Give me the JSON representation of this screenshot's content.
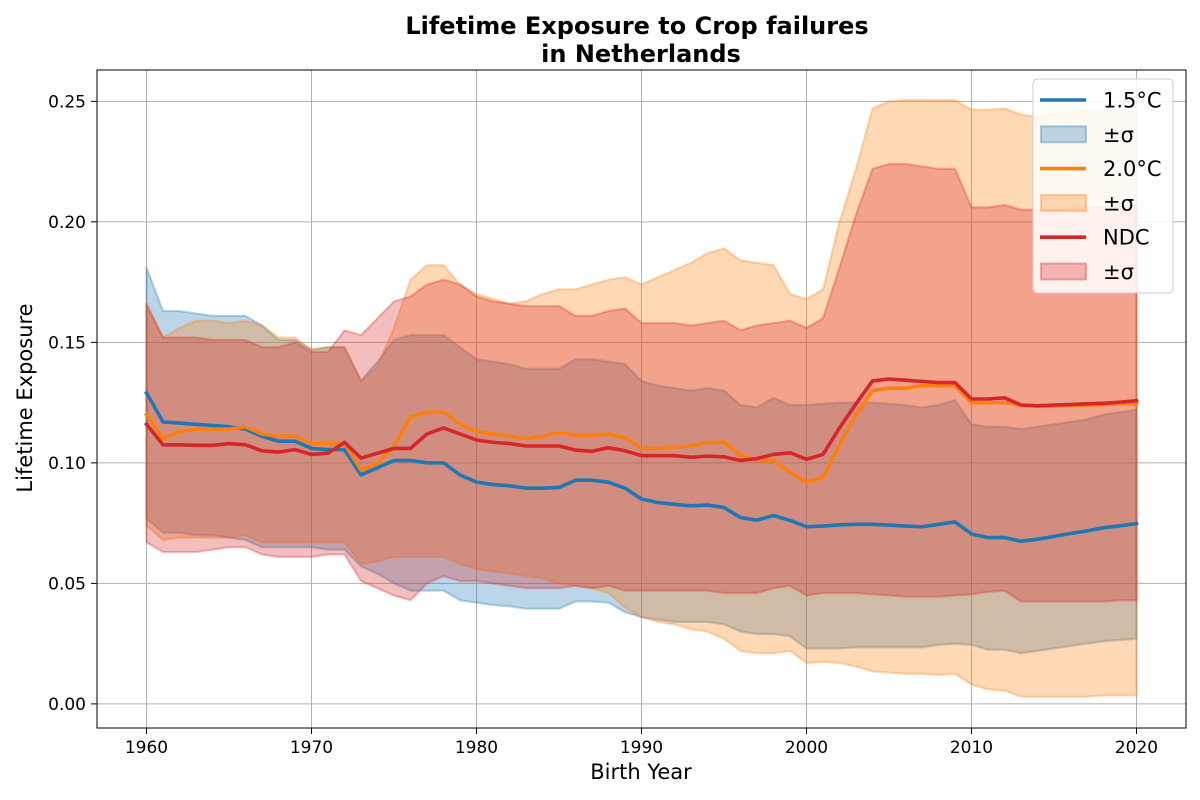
{
  "chart_data": {
    "type": "line",
    "title_line1": "Lifetime Exposure to Crop failures",
    "title_line2": "in Netherlands",
    "xlabel": "Birth Year",
    "ylabel": "Lifetime Exposure",
    "xlim": [
      1957,
      2023
    ],
    "ylim": [
      -0.01,
      0.263
    ],
    "xticks": [
      1960,
      1970,
      1980,
      1990,
      2000,
      2010,
      2020
    ],
    "yticks": [
      0.0,
      0.05,
      0.1,
      0.15,
      0.2,
      0.25
    ],
    "xtick_labels": [
      "1960",
      "1970",
      "1980",
      "1990",
      "2000",
      "2010",
      "2020"
    ],
    "ytick_labels": [
      "0.00",
      "0.05",
      "0.10",
      "0.15",
      "0.20",
      "0.25"
    ],
    "grid": true,
    "legend_position": "top-right",
    "legend_labels": [
      "1.5°C",
      "±σ",
      "2.0°C",
      "±σ",
      "NDC",
      "±σ"
    ],
    "series": [
      {
        "name": "1.5°C",
        "color": "#1f77b4",
        "x": [
          1960,
          1961,
          1962,
          1963,
          1964,
          1965,
          1966,
          1967,
          1968,
          1969,
          1970,
          1971,
          1972,
          1973,
          1974,
          1975,
          1976,
          1977,
          1978,
          1979,
          1980,
          1981,
          1982,
          1983,
          1984,
          1985,
          1986,
          1987,
          1988,
          1989,
          1990,
          1991,
          1992,
          1993,
          1994,
          1995,
          1996,
          1997,
          1998,
          1999,
          2000,
          2001,
          2002,
          2003,
          2004,
          2005,
          2006,
          2007,
          2008,
          2009,
          2010,
          2011,
          2012,
          2013,
          2014,
          2015,
          2016,
          2017,
          2018,
          2019,
          2020
        ],
        "values": [
          0.129,
          0.117,
          0.1165,
          0.116,
          0.1155,
          0.115,
          0.114,
          0.111,
          0.109,
          0.109,
          0.106,
          0.1055,
          0.1055,
          0.095,
          0.098,
          0.101,
          0.101,
          0.1,
          0.1,
          0.095,
          0.092,
          0.091,
          0.0905,
          0.0895,
          0.0895,
          0.0898,
          0.0928,
          0.0928,
          0.092,
          0.0895,
          0.085,
          0.0835,
          0.0828,
          0.0822,
          0.0825,
          0.0815,
          0.0773,
          0.0762,
          0.0782,
          0.0761,
          0.0735,
          0.0738,
          0.0743,
          0.0745,
          0.0745,
          0.0742,
          0.0738,
          0.0735,
          0.0745,
          0.0755,
          0.0705,
          0.069,
          0.069,
          0.0675,
          0.0683,
          0.0695,
          0.0707,
          0.0718,
          0.0731,
          0.0739,
          0.0748
        ],
        "upper": [
          0.181,
          0.163,
          0.163,
          0.162,
          0.161,
          0.161,
          0.161,
          0.157,
          0.151,
          0.151,
          0.147,
          0.148,
          0.148,
          0.134,
          0.142,
          0.151,
          0.153,
          0.153,
          0.153,
          0.148,
          0.143,
          0.142,
          0.141,
          0.139,
          0.139,
          0.139,
          0.143,
          0.143,
          0.142,
          0.141,
          0.134,
          0.132,
          0.131,
          0.13,
          0.131,
          0.13,
          0.124,
          0.123,
          0.127,
          0.124,
          0.124,
          0.1245,
          0.125,
          0.125,
          0.125,
          0.1245,
          0.124,
          0.123,
          0.124,
          0.126,
          0.116,
          0.115,
          0.115,
          0.114,
          0.115,
          0.116,
          0.117,
          0.118,
          0.12,
          0.121,
          0.122
        ],
        "lower": [
          0.077,
          0.071,
          0.071,
          0.07,
          0.07,
          0.069,
          0.068,
          0.065,
          0.065,
          0.065,
          0.065,
          0.064,
          0.064,
          0.057,
          0.054,
          0.05,
          0.047,
          0.047,
          0.047,
          0.043,
          0.042,
          0.041,
          0.0405,
          0.0395,
          0.0395,
          0.0395,
          0.0425,
          0.0425,
          0.042,
          0.038,
          0.036,
          0.035,
          0.034,
          0.034,
          0.034,
          0.033,
          0.03,
          0.029,
          0.029,
          0.028,
          0.023,
          0.023,
          0.023,
          0.0235,
          0.0235,
          0.0235,
          0.0235,
          0.0235,
          0.0245,
          0.025,
          0.0245,
          0.0225,
          0.0225,
          0.021,
          0.022,
          0.023,
          0.024,
          0.025,
          0.026,
          0.0265,
          0.027
        ]
      },
      {
        "name": "2.0°C",
        "color": "#ff7f0e",
        "x": [
          1960,
          1961,
          1962,
          1963,
          1964,
          1965,
          1966,
          1967,
          1968,
          1969,
          1970,
          1971,
          1972,
          1973,
          1974,
          1975,
          1976,
          1977,
          1978,
          1979,
          1980,
          1981,
          1982,
          1983,
          1984,
          1985,
          1986,
          1987,
          1988,
          1989,
          1990,
          1991,
          1992,
          1993,
          1994,
          1995,
          1996,
          1997,
          1998,
          1999,
          2000,
          2001,
          2002,
          2003,
          2004,
          2005,
          2006,
          2007,
          2008,
          2009,
          2010,
          2011,
          2012,
          2013,
          2014,
          2015,
          2016,
          2017,
          2018,
          2019,
          2020
        ],
        "values": [
          0.12,
          0.11,
          0.113,
          0.114,
          0.114,
          0.114,
          0.115,
          0.112,
          0.111,
          0.111,
          0.108,
          0.108,
          0.108,
          0.097,
          0.1,
          0.107,
          0.119,
          0.121,
          0.121,
          0.116,
          0.113,
          0.112,
          0.111,
          0.11,
          0.111,
          0.1125,
          0.1115,
          0.1115,
          0.112,
          0.1105,
          0.106,
          0.106,
          0.1065,
          0.107,
          0.1085,
          0.1085,
          0.103,
          0.101,
          0.101,
          0.096,
          0.092,
          0.094,
          0.1075,
          0.12,
          0.13,
          0.131,
          0.131,
          0.132,
          0.132,
          0.132,
          0.125,
          0.125,
          0.125,
          0.124,
          0.1235,
          0.1235,
          0.124,
          0.124,
          0.1242,
          0.1245,
          0.1245
        ],
        "upper": [
          0.165,
          0.152,
          0.156,
          0.159,
          0.159,
          0.158,
          0.159,
          0.157,
          0.152,
          0.152,
          0.147,
          0.148,
          0.148,
          0.134,
          0.14,
          0.156,
          0.176,
          0.182,
          0.182,
          0.174,
          0.17,
          0.168,
          0.166,
          0.167,
          0.17,
          0.172,
          0.172,
          0.174,
          0.176,
          0.177,
          0.174,
          0.177,
          0.18,
          0.183,
          0.187,
          0.189,
          0.184,
          0.183,
          0.182,
          0.17,
          0.168,
          0.172,
          0.2,
          0.222,
          0.247,
          0.25,
          0.2505,
          0.2505,
          0.2505,
          0.2505,
          0.2465,
          0.2465,
          0.247,
          0.2445,
          0.2435,
          0.245,
          0.2455,
          0.246,
          0.246,
          0.246,
          0.246
        ],
        "lower": [
          0.074,
          0.068,
          0.069,
          0.069,
          0.069,
          0.069,
          0.07,
          0.067,
          0.067,
          0.067,
          0.067,
          0.067,
          0.067,
          0.058,
          0.059,
          0.061,
          0.061,
          0.061,
          0.061,
          0.058,
          0.056,
          0.055,
          0.054,
          0.053,
          0.052,
          0.05,
          0.049,
          0.048,
          0.046,
          0.04,
          0.036,
          0.034,
          0.033,
          0.031,
          0.03,
          0.027,
          0.022,
          0.021,
          0.021,
          0.022,
          0.017,
          0.0175,
          0.017,
          0.0155,
          0.0135,
          0.013,
          0.0125,
          0.0125,
          0.012,
          0.0125,
          0.008,
          0.006,
          0.0055,
          0.003,
          0.003,
          0.003,
          0.003,
          0.003,
          0.0035,
          0.0035,
          0.0035
        ]
      },
      {
        "name": "NDC",
        "color": "#d62728",
        "x": [
          1960,
          1961,
          1962,
          1963,
          1964,
          1965,
          1966,
          1967,
          1968,
          1969,
          1970,
          1971,
          1972,
          1973,
          1974,
          1975,
          1976,
          1977,
          1978,
          1979,
          1980,
          1981,
          1982,
          1983,
          1984,
          1985,
          1986,
          1987,
          1988,
          1989,
          1990,
          1991,
          1992,
          1993,
          1994,
          1995,
          1996,
          1997,
          1998,
          1999,
          2000,
          2001,
          2002,
          2003,
          2004,
          2005,
          2006,
          2007,
          2008,
          2009,
          2010,
          2011,
          2012,
          2013,
          2014,
          2015,
          2016,
          2017,
          2018,
          2019,
          2020
        ],
        "values": [
          0.116,
          0.1075,
          0.1075,
          0.1073,
          0.1073,
          0.108,
          0.1075,
          0.105,
          0.1045,
          0.1055,
          0.1035,
          0.104,
          0.1085,
          0.102,
          0.104,
          0.106,
          0.106,
          0.112,
          0.1145,
          0.112,
          0.1095,
          0.1085,
          0.108,
          0.107,
          0.107,
          0.107,
          0.1053,
          0.1048,
          0.1063,
          0.105,
          0.103,
          0.103,
          0.103,
          0.1023,
          0.1028,
          0.1025,
          0.101,
          0.1018,
          0.1035,
          0.1042,
          0.1015,
          0.1035,
          0.1145,
          0.1245,
          0.134,
          0.1348,
          0.1343,
          0.1338,
          0.1333,
          0.1333,
          0.1265,
          0.1265,
          0.127,
          0.124,
          0.1237,
          0.124,
          0.1242,
          0.1245,
          0.1247,
          0.1252,
          0.1258
        ],
        "upper": [
          0.166,
          0.152,
          0.152,
          0.152,
          0.151,
          0.151,
          0.151,
          0.148,
          0.148,
          0.15,
          0.146,
          0.146,
          0.155,
          0.153,
          0.16,
          0.167,
          0.169,
          0.174,
          0.176,
          0.174,
          0.169,
          0.167,
          0.166,
          0.165,
          0.165,
          0.165,
          0.161,
          0.161,
          0.163,
          0.164,
          0.158,
          0.158,
          0.158,
          0.157,
          0.158,
          0.159,
          0.155,
          0.157,
          0.158,
          0.159,
          0.156,
          0.16,
          0.181,
          0.203,
          0.222,
          0.224,
          0.224,
          0.223,
          0.222,
          0.222,
          0.206,
          0.206,
          0.207,
          0.205,
          0.205,
          0.205,
          0.2055,
          0.206,
          0.206,
          0.2065,
          0.207
        ],
        "lower": [
          0.067,
          0.063,
          0.063,
          0.063,
          0.064,
          0.065,
          0.065,
          0.062,
          0.061,
          0.061,
          0.061,
          0.062,
          0.062,
          0.051,
          0.048,
          0.045,
          0.043,
          0.05,
          0.053,
          0.051,
          0.051,
          0.05,
          0.049,
          0.048,
          0.048,
          0.048,
          0.049,
          0.048,
          0.049,
          0.047,
          0.047,
          0.047,
          0.047,
          0.047,
          0.047,
          0.046,
          0.046,
          0.046,
          0.048,
          0.049,
          0.045,
          0.046,
          0.046,
          0.046,
          0.0455,
          0.045,
          0.0445,
          0.0445,
          0.0445,
          0.045,
          0.0455,
          0.0465,
          0.047,
          0.0425,
          0.0425,
          0.0425,
          0.0425,
          0.0425,
          0.0425,
          0.043,
          0.043
        ]
      }
    ]
  }
}
